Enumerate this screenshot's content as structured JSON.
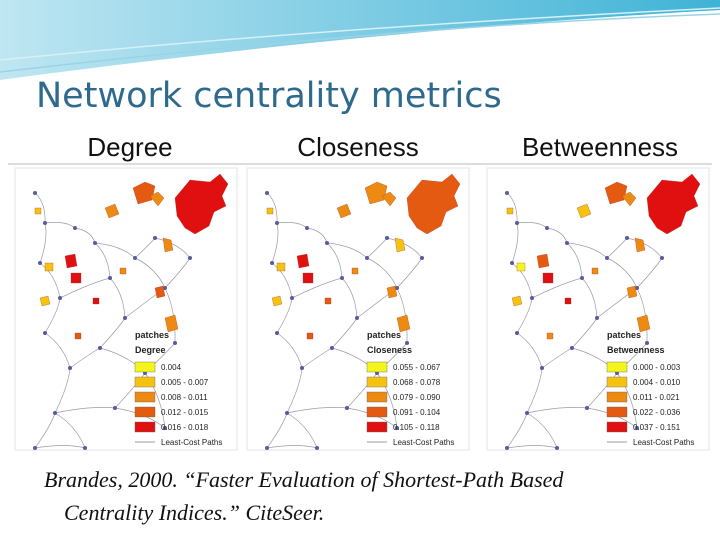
{
  "title": "Network centrality metrics",
  "panels": [
    {
      "heading": "Degree",
      "legend_title": "patches",
      "legend_field": "Degree",
      "legend_items": [
        "0.004",
        "0.005 - 0.007",
        "0.008 - 0.011",
        "0.012 - 0.015",
        "0.016 - 0.018"
      ],
      "legend_footer": "Least-Cost Paths"
    },
    {
      "heading": "Closeness",
      "legend_title": "patches",
      "legend_field": "Closeness",
      "legend_items": [
        "0.055 - 0.067",
        "0.068 - 0.078",
        "0.079 - 0.090",
        "0.091 - 0.104",
        "0.105 - 0.118"
      ],
      "legend_footer": "Least-Cost Paths"
    },
    {
      "heading": "Betweenness",
      "legend_title": "patches",
      "legend_field": "Betweenness",
      "legend_items": [
        "0.000 - 0.003",
        "0.004 - 0.010",
        "0.011 - 0.021",
        "0.022 - 0.036",
        "0.037 - 0.151"
      ],
      "legend_footer": "Least-Cost Paths"
    }
  ],
  "citation": {
    "lines": [
      "Brandes, 2000. “Faster Evaluation of Shortest-Path Based",
      "Centrality Indices.” CiteSeer."
    ]
  }
}
